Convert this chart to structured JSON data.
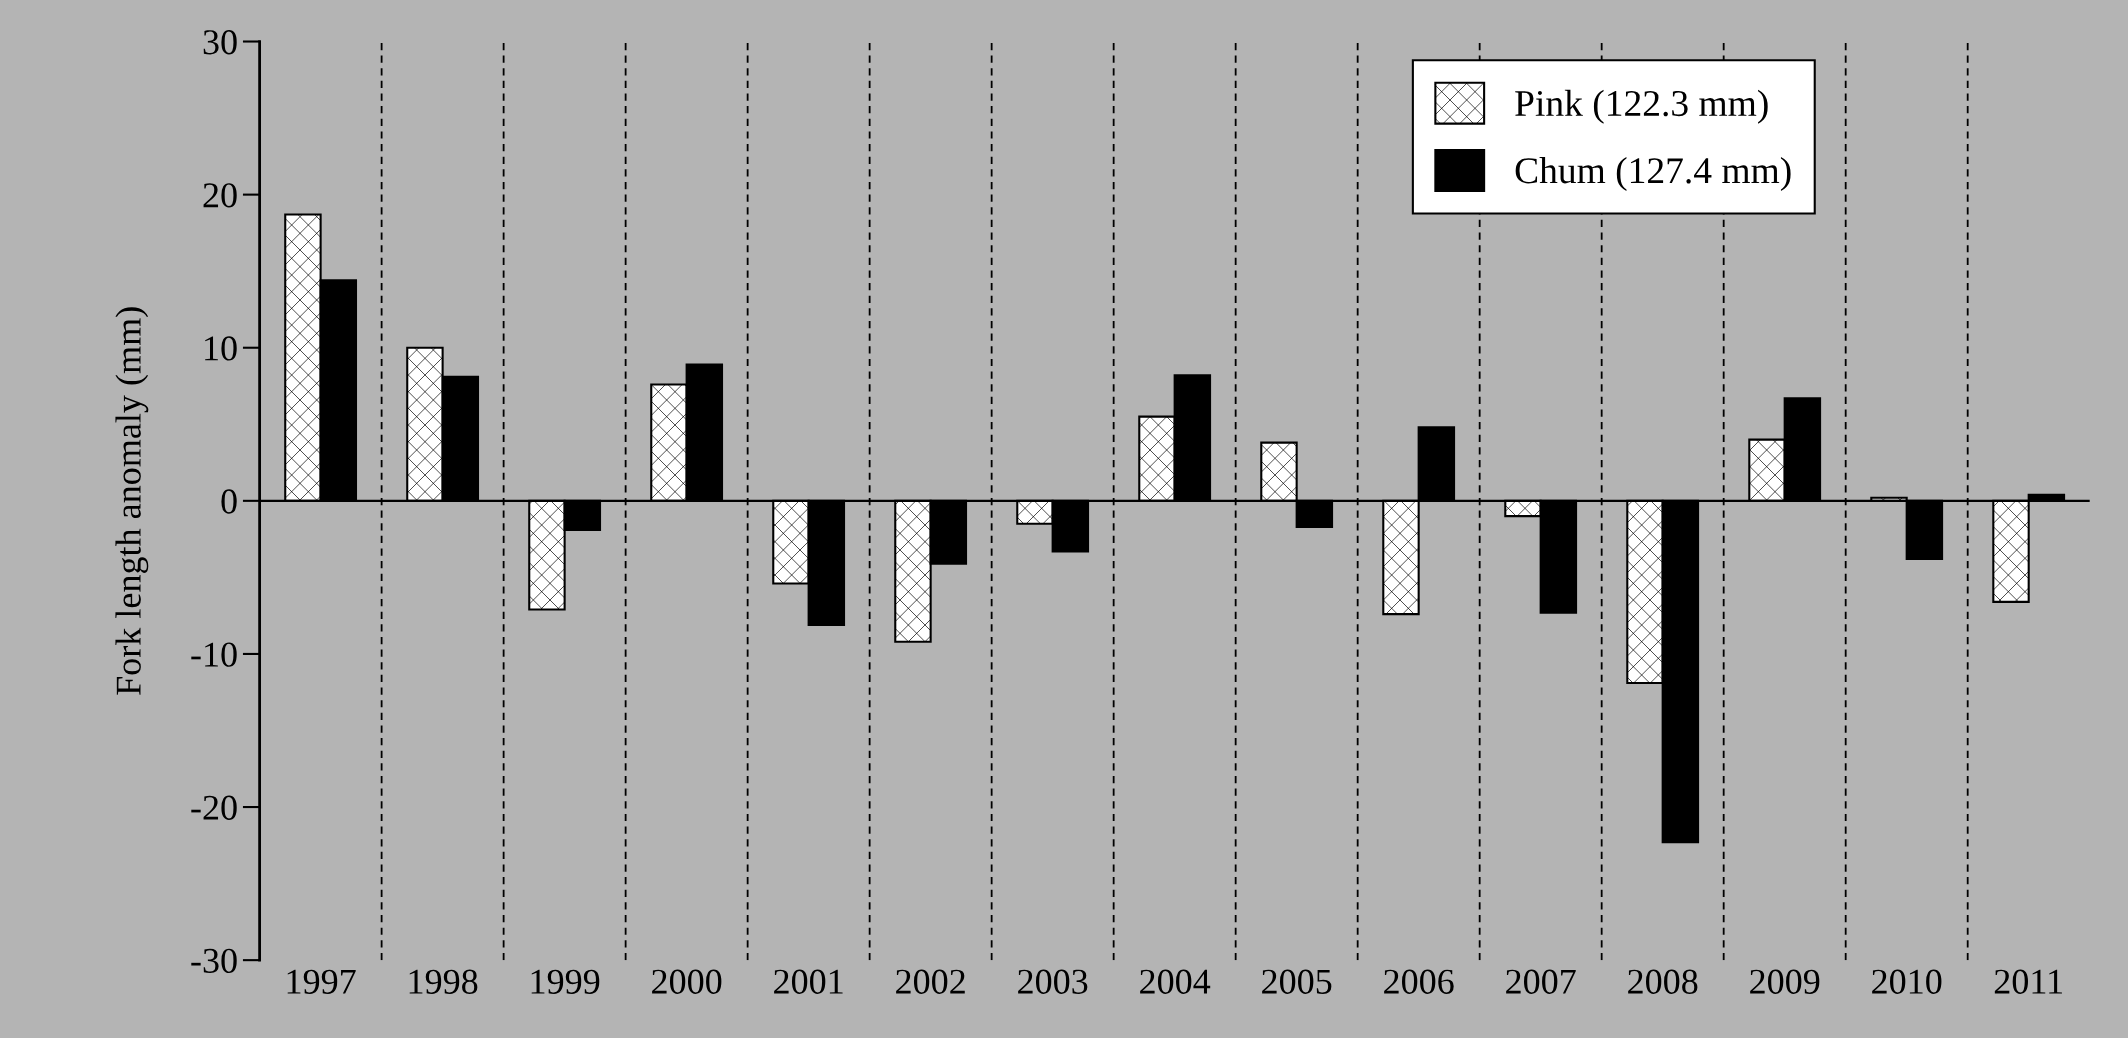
{
  "chart_data": {
    "type": "bar",
    "ylabel": "Fork length anomaly (mm)",
    "categories": [
      "1997",
      "1998",
      "1999",
      "2000",
      "2001",
      "2002",
      "2003",
      "2004",
      "2005",
      "2006",
      "2007",
      "2008",
      "2009",
      "2010",
      "2011"
    ],
    "series": [
      {
        "name": "Pink (122.3 mm)",
        "color": "#ffffff",
        "values": [
          18.7,
          10.0,
          -7.1,
          7.6,
          -5.4,
          -9.2,
          -1.5,
          5.5,
          3.8,
          -7.4,
          -1.0,
          -11.9,
          4.0,
          0.2,
          -6.6
        ]
      },
      {
        "name": "Chum (127.4 mm)",
        "color": "#000000",
        "values": [
          14.4,
          8.1,
          -1.9,
          8.9,
          -8.1,
          -4.1,
          -3.3,
          8.2,
          -1.7,
          4.8,
          -7.3,
          -22.3,
          6.7,
          -3.8,
          0.4
        ]
      }
    ],
    "ylim": [
      -30,
      30
    ],
    "yticks": [
      -30,
      -20,
      -10,
      0,
      10,
      20,
      30
    ],
    "grid": "x",
    "legend": "top right"
  }
}
